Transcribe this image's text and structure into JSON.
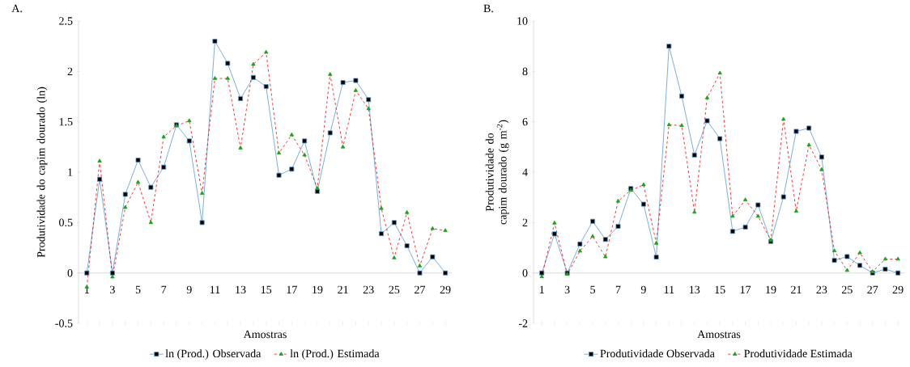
{
  "chart_data": [
    {
      "type": "line",
      "title": "A.",
      "xlabel": "Amostras",
      "ylabel": "Produtividade do capim dourado (ln)",
      "categories": [
        "1",
        null,
        "3",
        null,
        "5",
        null,
        "7",
        null,
        "9",
        null,
        "11",
        null,
        "13",
        null,
        "15",
        null,
        "17",
        null,
        "19",
        null,
        "21",
        null,
        "23",
        null,
        "25",
        null,
        "27",
        null,
        "29"
      ],
      "ylim": [
        -0.5,
        2.5
      ],
      "yticks": [
        -0.5,
        0,
        0.5,
        1,
        1.5,
        2,
        2.5
      ],
      "legend": "bottom",
      "series": [
        {
          "name": "ln (Prod.) Observada",
          "color": "#5b9bd5",
          "marker": "square",
          "line_style": "solid",
          "values": [
            0,
            0.93,
            0,
            0.78,
            1.12,
            0.85,
            1.05,
            1.47,
            1.31,
            0.5,
            2.3,
            2.08,
            1.73,
            1.94,
            1.85,
            0.97,
            1.03,
            1.31,
            0.81,
            1.39,
            1.89,
            1.91,
            1.72,
            0.39,
            0.5,
            0.27,
            0,
            0.16,
            0
          ]
        },
        {
          "name": "ln (Prod.) Estimada",
          "color": "#ff0000",
          "marker": "triangle",
          "line_style": "dashed",
          "values": [
            -0.14,
            1.11,
            -0.04,
            0.65,
            0.9,
            0.5,
            1.35,
            1.46,
            1.51,
            0.79,
            1.93,
            1.93,
            1.24,
            2.07,
            2.19,
            1.19,
            1.37,
            1.17,
            0.84,
            1.97,
            1.25,
            1.81,
            1.63,
            0.64,
            0.15,
            0.6,
            0.07,
            0.44,
            0.42
          ]
        }
      ]
    },
    {
      "type": "line",
      "title": "B.",
      "xlabel": "Amostras",
      "ylabel": "Produtividade do capim dourado (g m$^{-2}$)",
      "categories": [
        "1",
        null,
        "3",
        null,
        "5",
        null,
        "7",
        null,
        "9",
        null,
        "11",
        null,
        "13",
        null,
        "15",
        null,
        "17",
        null,
        "19",
        null,
        "21",
        null,
        "23",
        null,
        "25",
        null,
        "27",
        null,
        "29"
      ],
      "ylim": [
        -2,
        10
      ],
      "yticks": [
        -2,
        0,
        2,
        4,
        6,
        8,
        10
      ],
      "legend": "bottom",
      "series": [
        {
          "name": "Produtividade Observada",
          "color": "#5b9bd5",
          "marker": "square",
          "line_style": "solid",
          "values": [
            0,
            1.55,
            0,
            1.15,
            2.05,
            1.33,
            1.85,
            3.35,
            2.73,
            0.63,
            9.0,
            7.02,
            4.68,
            6.04,
            5.33,
            1.65,
            1.82,
            2.7,
            1.25,
            3.02,
            5.62,
            5.75,
            4.6,
            0.5,
            0.65,
            0.3,
            0,
            0.15,
            0
          ]
        },
        {
          "name": "Produtividade Estimada",
          "color": "#ff0000",
          "marker": "triangle",
          "line_style": "dashed",
          "values": [
            -0.15,
            1.98,
            -0.05,
            0.87,
            1.45,
            0.64,
            2.85,
            3.28,
            3.5,
            1.18,
            5.88,
            5.85,
            2.41,
            6.95,
            7.93,
            2.25,
            2.9,
            2.25,
            1.3,
            6.1,
            2.45,
            5.08,
            4.1,
            0.88,
            0.1,
            0.8,
            0.05,
            0.55,
            0.55
          ]
        }
      ]
    }
  ]
}
